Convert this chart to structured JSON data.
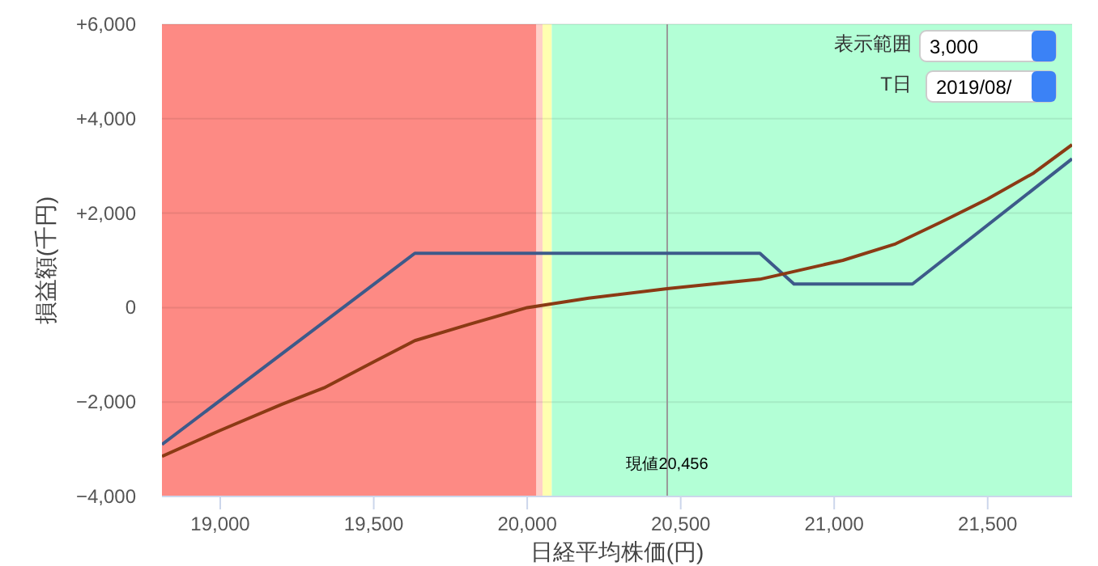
{
  "chart_data": {
    "type": "line",
    "xlabel": "日経平均株価(円)",
    "ylabel": "損益額(千円)",
    "xlim": [
      18810,
      21775
    ],
    "xticks": [
      {
        "value": 19000,
        "label": "19,000"
      },
      {
        "value": 19500,
        "label": "19,500"
      },
      {
        "value": 20000,
        "label": "20,000"
      },
      {
        "value": 20500,
        "label": "20,500"
      },
      {
        "value": 21000,
        "label": "21,000"
      },
      {
        "value": 21500,
        "label": "21,500"
      }
    ],
    "ylim": [
      -4000,
      6000
    ],
    "yticks": [
      {
        "value": -4000,
        "label": "−4,000"
      },
      {
        "value": -2000,
        "label": "−2,000"
      },
      {
        "value": 0,
        "label": "0"
      },
      {
        "value": 2000,
        "label": "+2,000"
      },
      {
        "value": 4000,
        "label": "+4,000"
      },
      {
        "value": 6000,
        "label": "+6,000"
      }
    ],
    "grid": "y",
    "marker": "none",
    "line_style": "solid",
    "series": [
      {
        "color": "#3d5a8a",
        "x": [
          18810,
          19634,
          20758,
          20869,
          21255,
          21775
        ],
        "values": [
          -2900,
          1150,
          1150,
          500,
          500,
          3150
        ]
      },
      {
        "color": "#8b3a14",
        "x": [
          18810,
          19000,
          19200,
          19338,
          19500,
          19634,
          19813,
          20000,
          20200,
          20456,
          20758,
          21028,
          21200,
          21345,
          21500,
          21650,
          21775
        ],
        "values": [
          -3150,
          -2600,
          -2050,
          -1700,
          -1150,
          -700,
          -350,
          0,
          200,
          400,
          600,
          1000,
          1350,
          1800,
          2300,
          2850,
          3450
        ]
      }
    ],
    "bands": [
      {
        "axis": "x",
        "from": 18810,
        "to": 20030,
        "color": "#fd8a84"
      },
      {
        "axis": "x",
        "from": 20030,
        "to": 20050,
        "color": "#ffd0c8"
      },
      {
        "axis": "x",
        "from": 20050,
        "to": 20080,
        "color": "#ffffb0"
      },
      {
        "axis": "x",
        "from": 20080,
        "to": 21775,
        "color": "#b3ffd6"
      }
    ],
    "ref_lines": [
      {
        "axis": "x",
        "value": 20456,
        "label": "現値20,456",
        "color": "#999999"
      }
    ],
    "annotations": [
      "表示範囲",
      "3,000",
      "T日",
      "2019/08/"
    ]
  }
}
